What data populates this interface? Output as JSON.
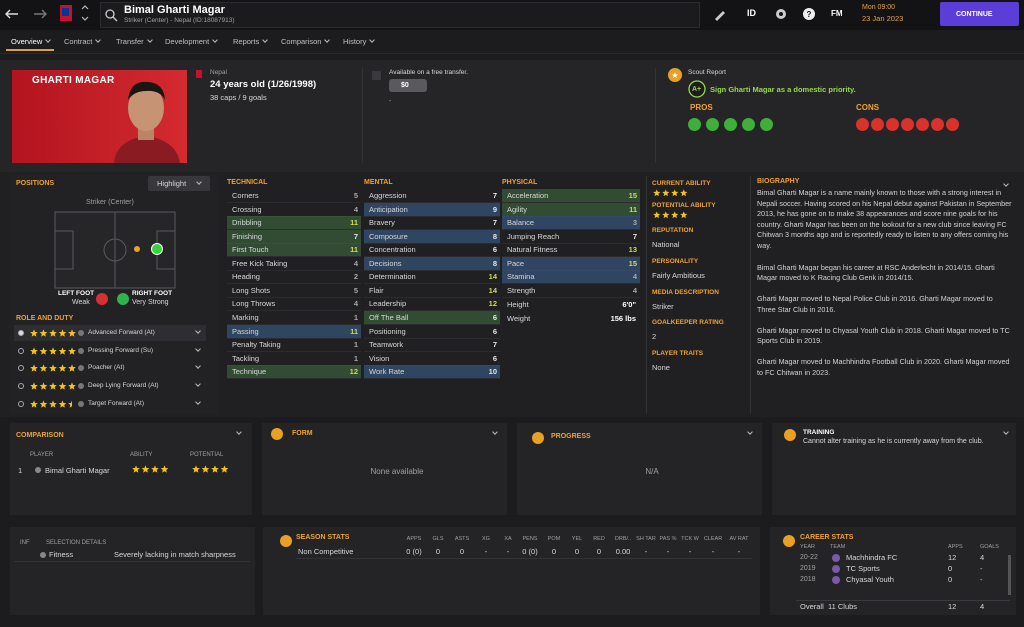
{
  "top_bar": {
    "player_name": "Bimal Gharti Magar",
    "subtitle": "Striker (Center) - Nepal (ID:18087913)",
    "id_label": "ID",
    "fm_label": "FM",
    "time": "Mon 09:00",
    "date": "23 Jan 2023",
    "continue": "CONTINUE"
  },
  "tabs": [
    "Overview",
    "Contract",
    "Transfer",
    "Development",
    "Reports",
    "Comparison",
    "History"
  ],
  "header": {
    "card_name": "GHARTI MAGAR",
    "nation": "Nepal",
    "age": "24 years old (1/26/1998)",
    "caps": "38 caps / 9 goals",
    "transfer": "Available on a free transfer.",
    "fee": "$0",
    "fee_note": "-",
    "scout_title": "Scout Report",
    "scout_grade": "A+",
    "scout_text": "Sign Gharti Magar as a domestic priority.",
    "pros": "PROS",
    "cons": "CONS"
  },
  "positions": {
    "title": "POSITIONS",
    "highlight": "Highlight",
    "position": "Striker (Center)",
    "left_foot": "LEFT FOOT",
    "left_foot_value": "Weak",
    "right_foot": "RIGHT FOOT",
    "right_foot_value": "Very Strong",
    "roles_title": "ROLE AND DUTY",
    "roles": [
      {
        "name": "Advanced Forward (At)",
        "stars": 5
      },
      {
        "name": "Pressing Forward (Su)",
        "stars": 5
      },
      {
        "name": "Poacher (At)",
        "stars": 5
      },
      {
        "name": "Deep Lying Forward (At)",
        "stars": 5
      },
      {
        "name": "Target Forward (At)",
        "stars": 4.5
      }
    ]
  },
  "attributes": [
    {
      "title": "TECHNICAL",
      "items": [
        {
          "name": "Corners",
          "value": 5
        },
        {
          "name": "Crossing",
          "value": 4
        },
        {
          "name": "Dribbling",
          "value": 11,
          "highlight": "green"
        },
        {
          "name": "Finishing",
          "value": 7,
          "highlight": "green"
        },
        {
          "name": "First Touch",
          "value": 11,
          "highlight": "green"
        },
        {
          "name": "Free Kick Taking",
          "value": 4
        },
        {
          "name": "Heading",
          "value": 2
        },
        {
          "name": "Long Shots",
          "value": 5
        },
        {
          "name": "Long Throws",
          "value": 4
        },
        {
          "name": "Marking",
          "value": 1
        },
        {
          "name": "Passing",
          "value": 11,
          "highlight": "blue"
        },
        {
          "name": "Penalty Taking",
          "value": 1
        },
        {
          "name": "Tackling",
          "value": 1
        },
        {
          "name": "Technique",
          "value": 12,
          "highlight": "green"
        }
      ]
    },
    {
      "title": "MENTAL",
      "items": [
        {
          "name": "Aggression",
          "value": 7
        },
        {
          "name": "Anticipation",
          "value": 9,
          "highlight": "blue"
        },
        {
          "name": "Bravery",
          "value": 7
        },
        {
          "name": "Composure",
          "value": 8,
          "highlight": "blue"
        },
        {
          "name": "Concentration",
          "value": 6
        },
        {
          "name": "Decisions",
          "value": 8,
          "highlight": "blue"
        },
        {
          "name": "Determination",
          "value": 14
        },
        {
          "name": "Flair",
          "value": 14
        },
        {
          "name": "Leadership",
          "value": 12
        },
        {
          "name": "Off The Ball",
          "value": 6,
          "highlight": "green"
        },
        {
          "name": "Positioning",
          "value": 6
        },
        {
          "name": "Teamwork",
          "value": 7
        },
        {
          "name": "Vision",
          "value": 6
        },
        {
          "name": "Work Rate",
          "value": 10,
          "highlight": "blue"
        }
      ]
    },
    {
      "title": "PHYSICAL",
      "items": [
        {
          "name": "Acceleration",
          "value": 15,
          "highlight": "green"
        },
        {
          "name": "Agility",
          "value": 11,
          "highlight": "green"
        },
        {
          "name": "Balance",
          "value": 3,
          "highlight": "blue"
        },
        {
          "name": "Jumping Reach",
          "value": 7
        },
        {
          "name": "Natural Fitness",
          "value": 13
        },
        {
          "name": "Pace",
          "value": 15,
          "highlight": "blue"
        },
        {
          "name": "Stamina",
          "value": 4,
          "highlight": "blue"
        },
        {
          "name": "Strength",
          "value": 4
        }
      ]
    }
  ],
  "physique": [
    {
      "name": "Height",
      "value": "6'0\""
    },
    {
      "name": "Weight",
      "value": "156 lbs"
    }
  ],
  "info": {
    "current_ability": "CURRENT ABILITY",
    "current_stars": 4,
    "potential_ability": "POTENTIAL ABILITY",
    "potential_stars": 4,
    "fields": [
      {
        "label": "REPUTATION",
        "value": "National"
      },
      {
        "label": "PERSONALITY",
        "value": "Fairly Ambitious"
      },
      {
        "label": "MEDIA DESCRIPTION",
        "value": "Striker"
      },
      {
        "label": "GOALKEEPER RATING",
        "value": "2"
      },
      {
        "label": "PLAYER TRAITS",
        "value": "None"
      }
    ]
  },
  "biography": {
    "title": "BIOGRAPHY",
    "paragraphs": [
      "Bimal Gharti Magar is a name mainly known to those with a strong interest in Nepali soccer. Having scored on his Nepal debut against Pakistan in September 2013, he has gone on to make 38 appearances and score nine goals for his country. Gharti Magar has been on the lookout for a new club since leaving FC Chitwan 3 months ago and is reportedly ready to listen to any offers coming his way.",
      "Bimal Gharti Magar began his career at RSC Anderlecht in 2014/15. Gharti Magar moved to K Racing Club Genk in 2014/15.",
      "Gharti Magar moved to Nepal Police Club in 2016. Gharti Magar moved to Three Star Club in 2016.",
      "Gharti Magar moved to Chyasal Youth Club in 2018. Gharti Magar moved to TC Sports Club in 2019.",
      "Gharti Magar moved to Machhindra Football Club in 2020. Gharti Magar moved to FC Chitwan in 2023."
    ]
  },
  "comparison": {
    "title": "COMPARISON",
    "columns": [
      "PLAYER",
      "ABILITY",
      "POTENTIAL"
    ],
    "rank": "1",
    "player": "Bimal Gharti Magar",
    "ability_stars": 4,
    "potential_stars": 4
  },
  "form": {
    "title": "FORM",
    "text": "None available"
  },
  "progress": {
    "title": "PROGRESS",
    "text": "N/A"
  },
  "training": {
    "title": "TRAINING",
    "text": "Cannot alter training as he is currently away from the club."
  },
  "selection": {
    "inf": "INF",
    "title": "SELECTION DETAILS",
    "label": "Fitness",
    "text": "Severely lacking in match sharpness"
  },
  "season_stats": {
    "title": "SEASON STATS",
    "columns": [
      "APPS",
      "GLS",
      "ASTS",
      "XG",
      "XA",
      "PENS",
      "POM",
      "YEL",
      "RED",
      "DRB/..",
      "SH TAR",
      "PAS %",
      "TCK W",
      "CLEAR",
      "AV RAT"
    ],
    "row_label": "Non Competitive",
    "values": [
      "0 (0)",
      0,
      0,
      "-",
      "-",
      "0 (0)",
      0,
      0,
      0,
      "0.00",
      "-",
      "-",
      "-",
      "-",
      "-"
    ]
  },
  "career_stats": {
    "title": "CAREER STATS",
    "columns": [
      "YEAR",
      "TEAM",
      "APPS",
      "GOALS"
    ],
    "rows": [
      {
        "year": "20-22",
        "team": "Machhindra FC",
        "apps": 12,
        "goals": 4
      },
      {
        "year": "2019",
        "team": "TC Sports",
        "apps": 0,
        "goals": "-"
      },
      {
        "year": "2018",
        "team": "Chyasal Youth",
        "apps": 0,
        "goals": "-"
      }
    ],
    "overall": {
      "label": "Overall",
      "clubs": "11 Clubs",
      "apps": 12,
      "goals": 4
    }
  }
}
